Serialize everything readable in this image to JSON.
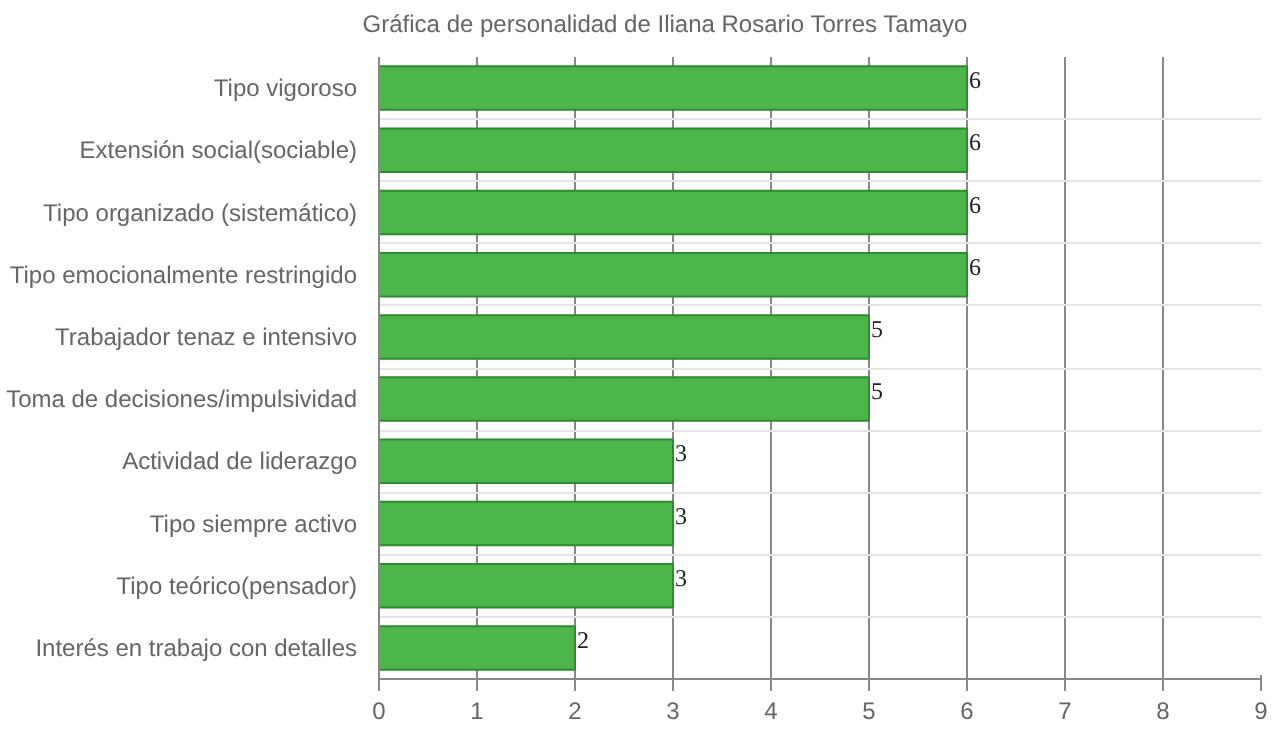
{
  "chart_data": {
    "type": "bar",
    "orientation": "horizontal",
    "categories": [
      "Tipo vigoroso",
      "Extensión social(sociable)",
      "Tipo organizado (sistemático)",
      "Tipo emocionalmente restringido",
      "Trabajador tenaz e intensivo",
      "Toma de decisiones/impulsividad",
      "Actividad de liderazgo",
      "Tipo siempre activo",
      "Tipo teórico(pensador)",
      "Interés en trabajo con detalles"
    ],
    "series": [
      {
        "name": "Gráfica de personalidad de Iliana Rosario Torres Tamayo",
        "color": "#4cb54c",
        "values": [
          6,
          6,
          6,
          6,
          5,
          5,
          3,
          3,
          3,
          2
        ]
      }
    ],
    "xlim": [
      0,
      9
    ],
    "xticks": [
      0,
      1,
      2,
      3,
      4,
      5,
      6,
      7,
      8,
      9
    ],
    "grid": true,
    "legend": "top",
    "data_labels": true
  }
}
